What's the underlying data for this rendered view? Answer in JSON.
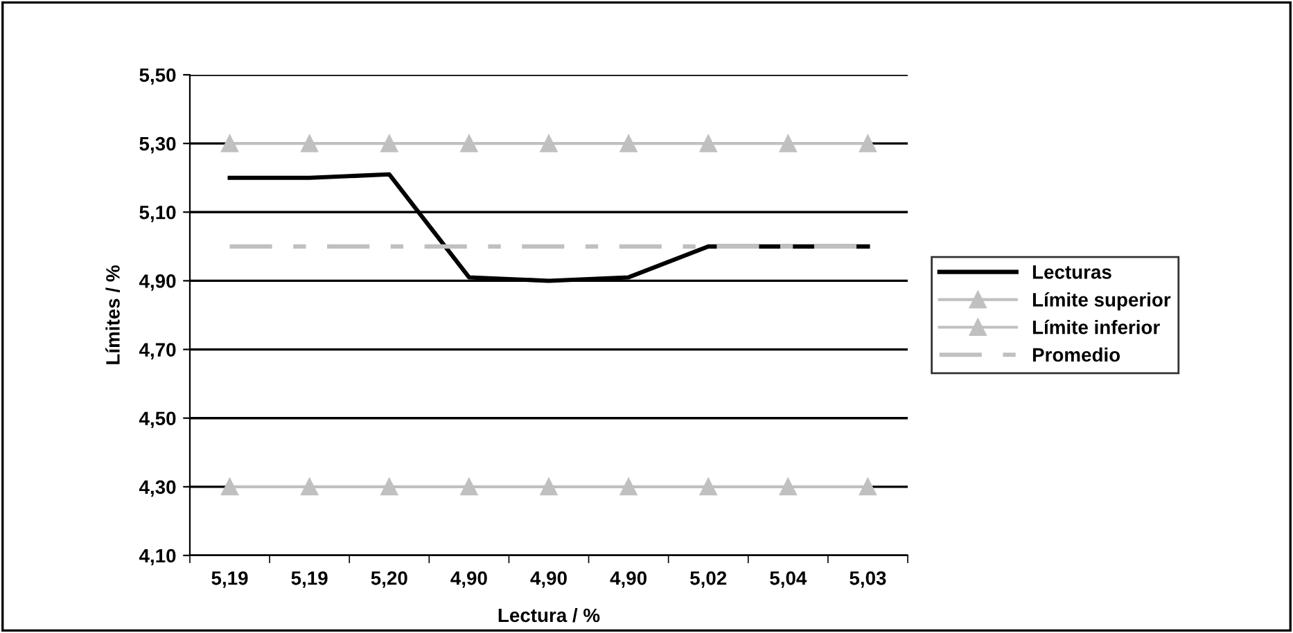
{
  "chart_data": {
    "type": "line",
    "xlabel": "Lectura / %",
    "ylabel": "Límites / %",
    "categories": [
      "5,19",
      "5,19",
      "5,20",
      "4,90",
      "4,90",
      "4,90",
      "5,02",
      "5,04",
      "5,03"
    ],
    "series": [
      {
        "name": "Lecturas",
        "color": "#000000",
        "marker": "none",
        "line_style": "solid",
        "values": [
          5.2,
          5.2,
          5.21,
          4.91,
          4.9,
          4.91,
          5.0,
          5.0,
          5.0
        ]
      },
      {
        "name": "Límite superior",
        "color": "#c0c0c0",
        "marker": "triangle",
        "line_style": "solid",
        "values": [
          5.3,
          5.3,
          5.3,
          5.3,
          5.3,
          5.3,
          5.3,
          5.3,
          5.3
        ]
      },
      {
        "name": "Límite inferior",
        "color": "#c0c0c0",
        "marker": "triangle",
        "line_style": "solid",
        "values": [
          4.3,
          4.3,
          4.3,
          4.3,
          4.3,
          4.3,
          4.3,
          4.3,
          4.3
        ]
      },
      {
        "name": "Promedio",
        "color": "#c0c0c0",
        "marker": "none",
        "line_style": "dashdot",
        "values": [
          5.0,
          5.0,
          5.0,
          5.0,
          5.0,
          5.0,
          5.0,
          5.0,
          5.0
        ]
      }
    ],
    "ylim": [
      4.1,
      5.5
    ],
    "yticks": [
      {
        "value": 4.1,
        "label": "4,10"
      },
      {
        "value": 4.3,
        "label": "4,30"
      },
      {
        "value": 4.5,
        "label": "4,50"
      },
      {
        "value": 4.7,
        "label": "4,70"
      },
      {
        "value": 4.9,
        "label": "4,90"
      },
      {
        "value": 5.1,
        "label": "5,10"
      },
      {
        "value": 5.3,
        "label": "5,30"
      },
      {
        "value": 5.5,
        "label": "5,50"
      }
    ],
    "grid": "y",
    "legend": "right"
  }
}
